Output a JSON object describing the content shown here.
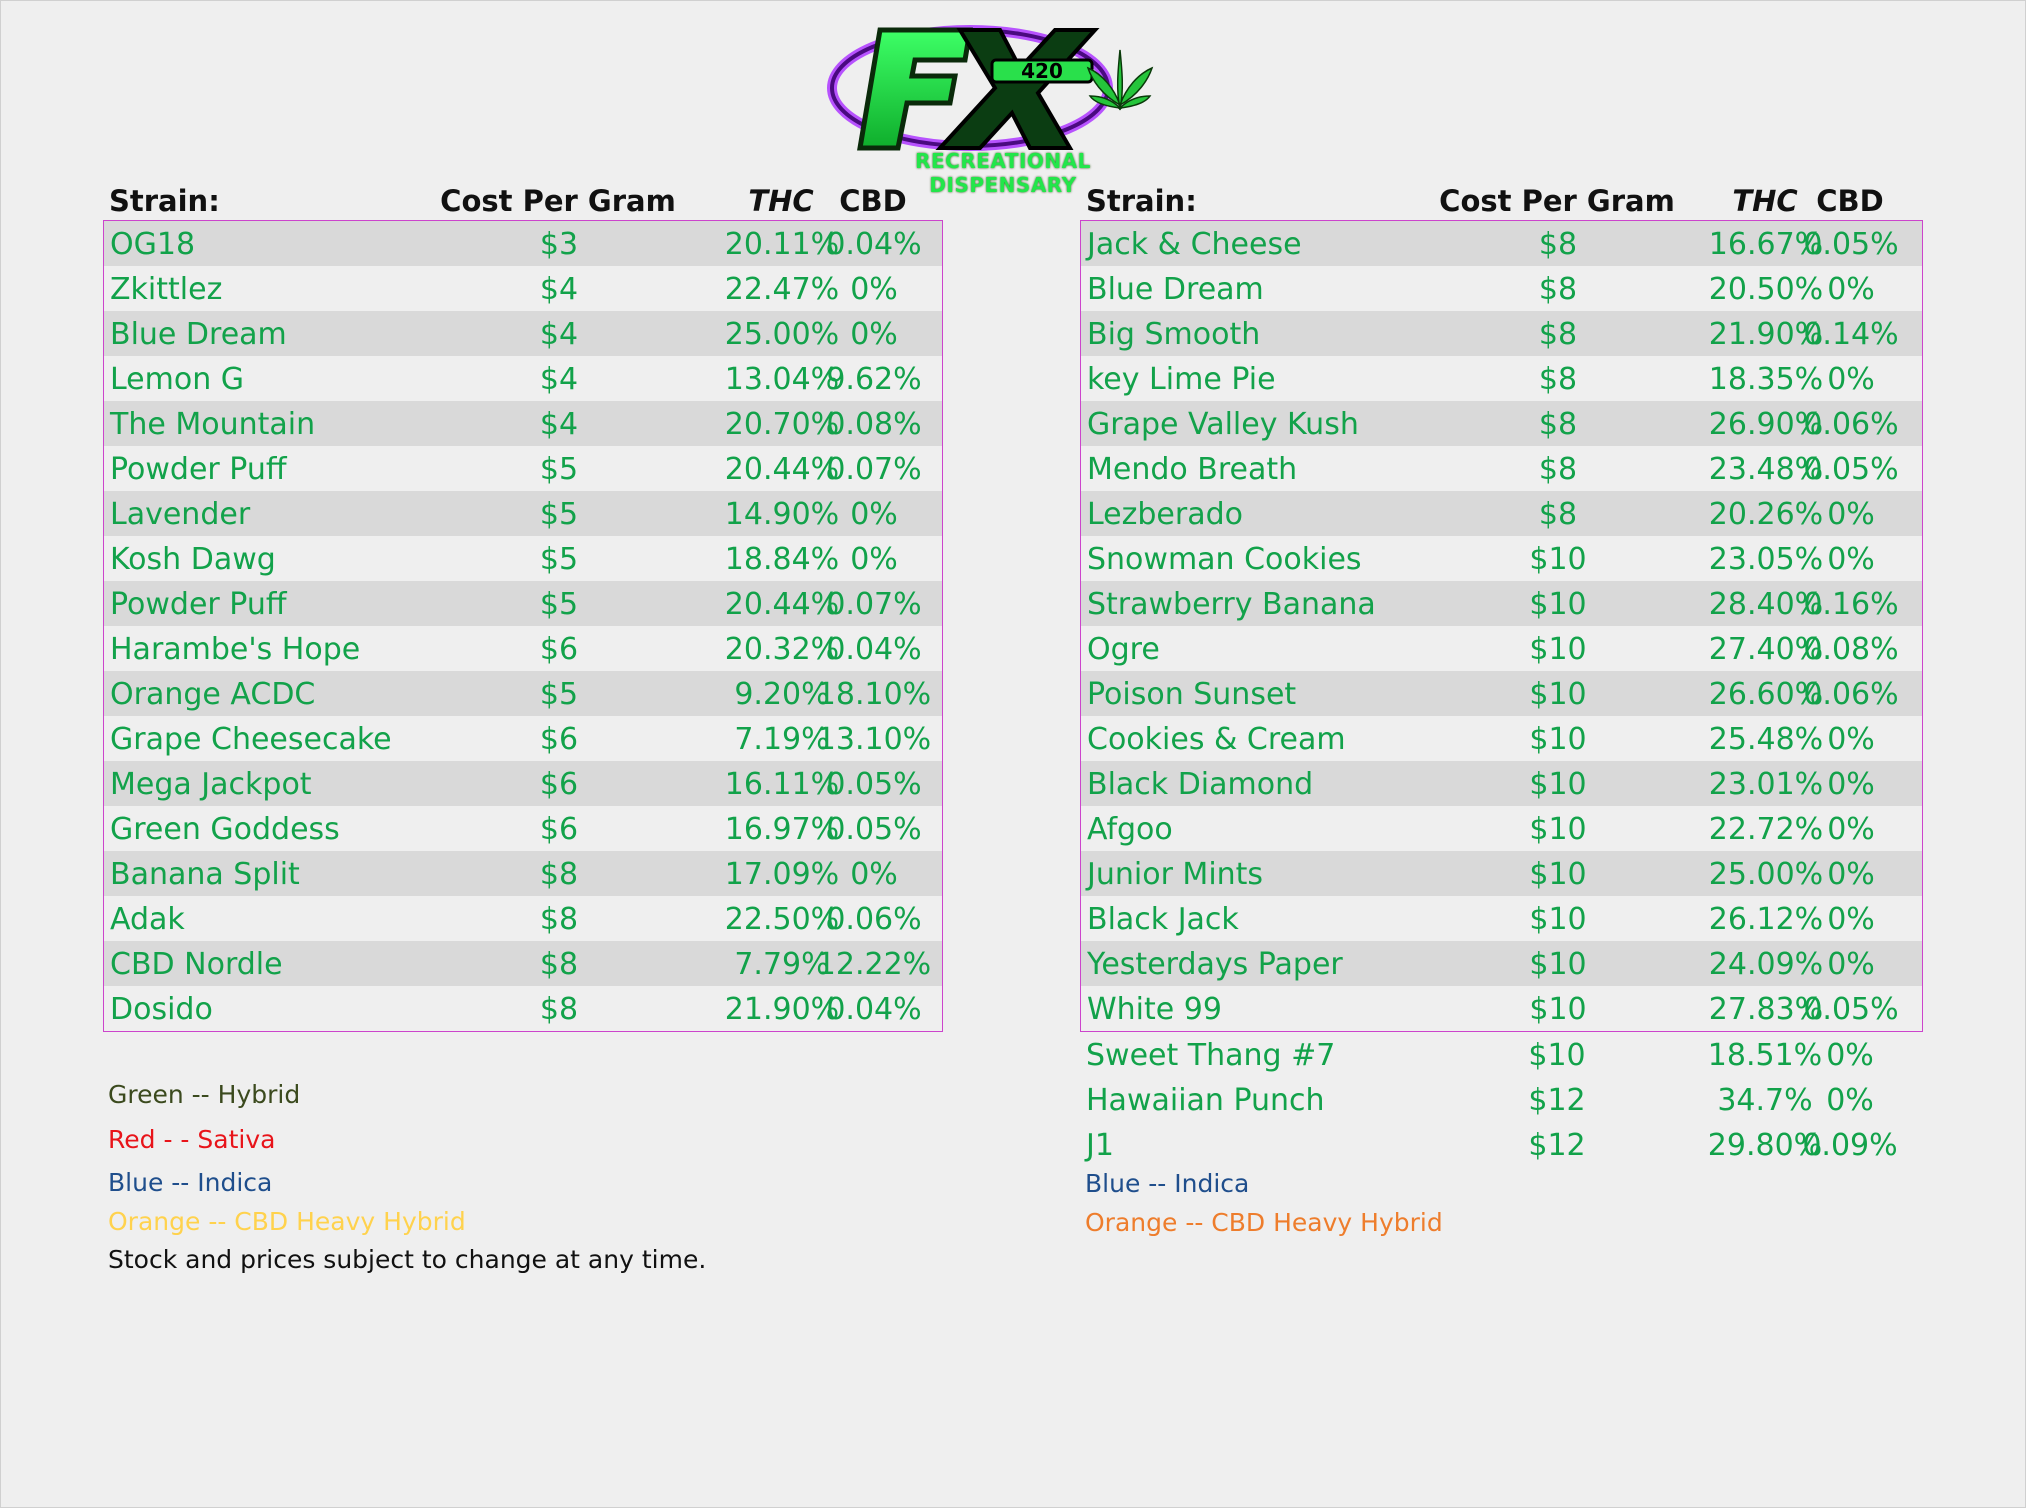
{
  "logo": {
    "brand_text": "FX",
    "number_text": "420",
    "subtitle": "RECREATIONAL DISPENSARY"
  },
  "columns": {
    "strain": "Strain:",
    "cost": "Cost Per Gram",
    "thc": "THC",
    "cbd": "CBD"
  },
  "left_table": {
    "rows": [
      {
        "strain": "OG18",
        "cost": "$3",
        "thc": "20.11%",
        "cbd": "0.04%"
      },
      {
        "strain": "Zkittlez",
        "cost": "$4",
        "thc": "22.47%",
        "cbd": "0%"
      },
      {
        "strain": "Blue Dream",
        "cost": "$4",
        "thc": "25.00%",
        "cbd": "0%"
      },
      {
        "strain": "Lemon G",
        "cost": "$4",
        "thc": "13.04%",
        "cbd": "9.62%"
      },
      {
        "strain": "The Mountain",
        "cost": "$4",
        "thc": "20.70%",
        "cbd": "0.08%"
      },
      {
        "strain": "Powder Puff",
        "cost": "$5",
        "thc": "20.44%",
        "cbd": "0.07%"
      },
      {
        "strain": "Lavender",
        "cost": "$5",
        "thc": "14.90%",
        "cbd": "0%"
      },
      {
        "strain": "Kosh Dawg",
        "cost": "$5",
        "thc": "18.84%",
        "cbd": "0%"
      },
      {
        "strain": "Powder Puff",
        "cost": "$5",
        "thc": "20.44%",
        "cbd": "0.07%"
      },
      {
        "strain": "Harambe's Hope",
        "cost": "$6",
        "thc": "20.32%",
        "cbd": "0.04%"
      },
      {
        "strain": "Orange ACDC",
        "cost": "$5",
        "thc": "9.20%",
        "cbd": "18.10%"
      },
      {
        "strain": "Grape Cheesecake",
        "cost": "$6",
        "thc": "7.19%",
        "cbd": "13.10%"
      },
      {
        "strain": "Mega Jackpot",
        "cost": "$6",
        "thc": "16.11%",
        "cbd": "0.05%"
      },
      {
        "strain": "Green Goddess",
        "cost": "$6",
        "thc": "16.97%",
        "cbd": "0.05%"
      },
      {
        "strain": "Banana Split",
        "cost": "$8",
        "thc": "17.09%",
        "cbd": "0%"
      },
      {
        "strain": "Adak",
        "cost": "$8",
        "thc": "22.50%",
        "cbd": "0.06%"
      },
      {
        "strain": "CBD Nordle",
        "cost": "$8",
        "thc": "7.79%",
        "cbd": "12.22%"
      },
      {
        "strain": "Dosido",
        "cost": "$8",
        "thc": "21.90%",
        "cbd": "0.04%"
      }
    ]
  },
  "right_table": {
    "rows": [
      {
        "strain": "Jack & Cheese",
        "cost": "$8",
        "thc": "16.67%",
        "cbd": "0.05%"
      },
      {
        "strain": "Blue Dream",
        "cost": "$8",
        "thc": "20.50%",
        "cbd": "0%"
      },
      {
        "strain": "Big Smooth",
        "cost": "$8",
        "thc": "21.90%",
        "cbd": "0.14%"
      },
      {
        "strain": "key Lime Pie",
        "cost": "$8",
        "thc": "18.35%",
        "cbd": "0%"
      },
      {
        "strain": "Grape Valley Kush",
        "cost": "$8",
        "thc": "26.90%",
        "cbd": "0.06%"
      },
      {
        "strain": "Mendo Breath",
        "cost": "$8",
        "thc": "23.48%",
        "cbd": "0.05%"
      },
      {
        "strain": "Lezberado",
        "cost": "$8",
        "thc": "20.26%",
        "cbd": "0%"
      },
      {
        "strain": "Snowman Cookies",
        "cost": "$10",
        "thc": "23.05%",
        "cbd": "0%"
      },
      {
        "strain": "Strawberry Banana",
        "cost": "$10",
        "thc": "28.40%",
        "cbd": "0.16%"
      },
      {
        "strain": "Ogre",
        "cost": "$10",
        "thc": "27.40%",
        "cbd": "0.08%"
      },
      {
        "strain": "Poison Sunset",
        "cost": "$10",
        "thc": "26.60%",
        "cbd": "0.06%"
      },
      {
        "strain": "Cookies & Cream",
        "cost": "$10",
        "thc": "25.48%",
        "cbd": "0%"
      },
      {
        "strain": "Black Diamond",
        "cost": "$10",
        "thc": "23.01%",
        "cbd": "0%"
      },
      {
        "strain": "Afgoo",
        "cost": "$10",
        "thc": "22.72%",
        "cbd": "0%"
      },
      {
        "strain": "Junior Mints",
        "cost": "$10",
        "thc": "25.00%",
        "cbd": "0%"
      },
      {
        "strain": "Black Jack",
        "cost": "$10",
        "thc": "26.12%",
        "cbd": "0%"
      },
      {
        "strain": "Yesterdays Paper",
        "cost": "$10",
        "thc": "24.09%",
        "cbd": "0%"
      },
      {
        "strain": "White 99",
        "cost": "$10",
        "thc": "27.83%",
        "cbd": "0.05%"
      }
    ],
    "extra_rows": [
      {
        "strain": "Sweet Thang #7",
        "cost": "$10",
        "thc": "18.51%",
        "cbd": "0%"
      },
      {
        "strain": "Hawaiian Punch",
        "cost": "$12",
        "thc": "34.7%",
        "cbd": "0%"
      },
      {
        "strain": "J1",
        "cost": "$12",
        "thc": "29.80%",
        "cbd": "0.09%"
      }
    ]
  },
  "legend_left": {
    "green": "Green  --  Hybrid",
    "red": "Red  - -  Sativa",
    "blue": "Blue  --  Indica",
    "orange": "Orange  --  CBD Heavy Hybrid",
    "note": "Stock and prices subject to change at any time."
  },
  "legend_right": {
    "blue": "Blue  --  Indica",
    "orange": "Orange  --  CBD Heavy Hybrid"
  },
  "colors": {
    "strain_text": "#12a24a",
    "border": "#cc44cc",
    "stripe": "#d9d9d9",
    "logo_green": "#22e64a",
    "logo_purple": "#a020f0"
  },
  "icons": [
    "cannabis-leaf-icon"
  ]
}
